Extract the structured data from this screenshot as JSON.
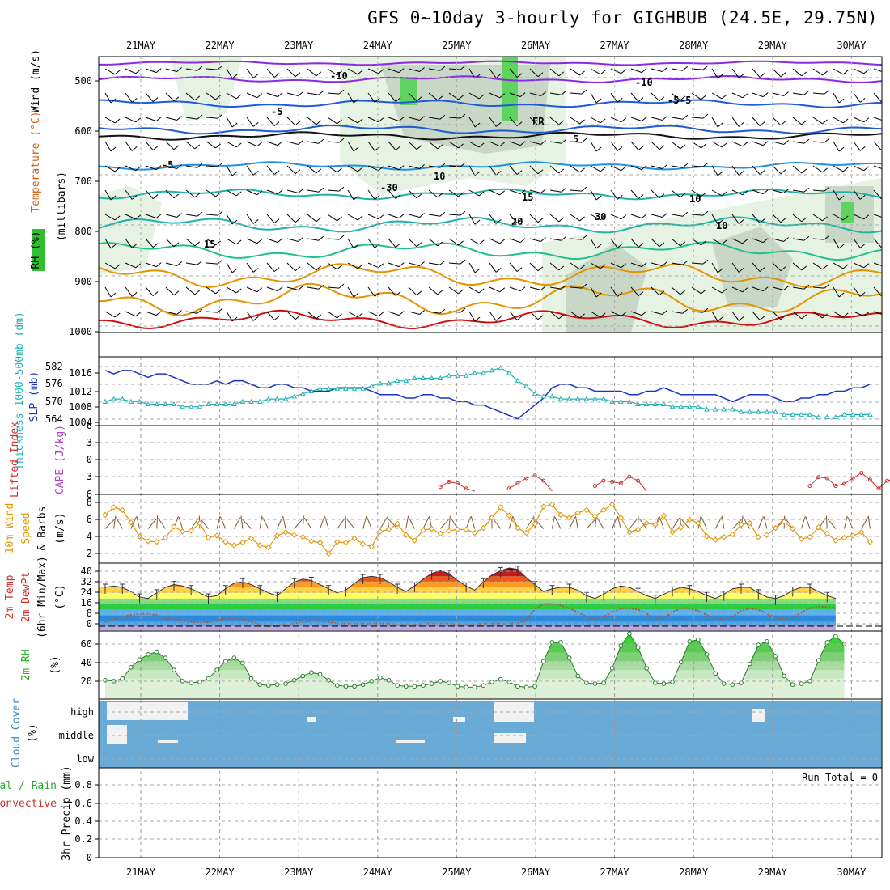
{
  "title": "GFS 0~10day 3-hourly for GIGHBUB (24.5E, 29.75N)",
  "dates": [
    "21MAY",
    "22MAY",
    "23MAY",
    "24MAY",
    "25MAY",
    "26MAY",
    "27MAY",
    "28MAY",
    "29MAY",
    "30MAY"
  ],
  "colors": {
    "rh": "#2fbf2f",
    "temp_cold": "#8a2be2",
    "temp_cool": "#1e5bd6",
    "temp_mild": "#20b2aa",
    "temp_warm": "#e59400",
    "temp_hot": "#d01010",
    "slp": "#1a33c8",
    "thickness": "#20b2b2",
    "lifted": "#d03030",
    "wind10": "#e59400",
    "cloud": "#6aaad6",
    "rh2m": "#22aa22"
  },
  "panels": {
    "upper": {
      "ylabels": [
        "RH (%)",
        "Temperature (°C)",
        "Wind (m/s)"
      ],
      "ylabel2": "(millibars)",
      "ticks": [
        "500",
        "600",
        "700",
        "800",
        "900",
        "1000"
      ],
      "contour_labels": [
        "-10",
        "-10",
        "-5",
        "-5",
        "-5",
        "FR",
        "-5",
        "5",
        "10",
        "10",
        "15",
        "20",
        "15",
        "10",
        "-30",
        "30"
      ]
    },
    "slp": {
      "ylabel_left": "Thickness 1000-500mb (dm)",
      "ylabel_right": "SLP (mb)",
      "ticks_thk": [
        "582",
        "576",
        "570",
        "564"
      ],
      "ticks_slp": [
        "1016",
        "1012",
        "1008",
        "1004"
      ]
    },
    "stability": {
      "ylabel_left": "Lifted Index",
      "ylabel_right": "CAPE (J/kg)",
      "ticks": [
        "-6",
        "-3",
        "0",
        "3",
        "6"
      ]
    },
    "wind10": {
      "ylabel_left": "10m Wind",
      "ylabel_mid": "Speed",
      "ylabel_right": "& Barbs",
      "unit": "(m/s)",
      "ticks": [
        "8",
        "6",
        "4",
        "2"
      ]
    },
    "temp2m": {
      "ylabel": [
        "2m Temp",
        "2m DewPt",
        "(6hr Min/Max)"
      ],
      "unit": "(°C)",
      "ticks": [
        "40",
        "32",
        "24",
        "16",
        "8",
        "0"
      ]
    },
    "rh2m": {
      "ylabel": "2m RH",
      "unit": "(%)",
      "ticks": [
        "60",
        "40",
        "20"
      ]
    },
    "cloud": {
      "ylabel": "Cloud Cover",
      "unit": "(%)",
      "ticks": [
        "high",
        "middle",
        "low"
      ]
    },
    "precip": {
      "ylabel_left": "Total / Rain",
      "ylabel_left2": "Convective",
      "ylabel_right": "3hr Precip (mm)",
      "ticks": [
        "0.8",
        "0.6",
        "0.4",
        "0.2",
        "0"
      ],
      "run_total": "Run Total = 0"
    }
  },
  "chart_data": [
    {
      "type": "line",
      "title": "GFS 0~10day 3-hourly for GIGHBUB (24.5E, 29.75N)",
      "xlabel": "",
      "ylabel": "SLP (mb)",
      "ylim": [
        1003,
        1021
      ],
      "series": [
        {
          "name": "SLP (mb)",
          "values": [
            1018,
            1017,
            1018,
            1018,
            1017,
            1016,
            1017,
            1017,
            1016,
            1015,
            1014,
            1014,
            1014,
            1015,
            1014,
            1015,
            1015,
            1014,
            1013,
            1013,
            1014,
            1014,
            1013,
            1013,
            1012,
            1012,
            1012,
            1013,
            1013,
            1013,
            1013,
            1012,
            1011,
            1011,
            1011,
            1010,
            1010,
            1011,
            1011,
            1010,
            1010,
            1009,
            1009,
            1008,
            1008,
            1007,
            1006,
            1005,
            1004,
            1006,
            1008,
            1010,
            1013,
            1014,
            1014,
            1013,
            1013,
            1012,
            1012,
            1012,
            1012,
            1011,
            1011,
            1012,
            1012,
            1013,
            1012,
            1011,
            1011,
            1011,
            1011,
            1011,
            1010,
            1009,
            1010,
            1011,
            1011,
            1011,
            1010,
            1009,
            1009,
            1010,
            1010,
            1011,
            1011,
            1012,
            1012,
            1013,
            1013,
            1014
          ]
        },
        {
          "name": "Thickness 1000-500mb (dm)",
          "values": [
            570,
            571,
            571,
            570,
            570,
            569,
            569,
            569,
            569,
            568,
            568,
            568,
            569,
            569,
            569,
            569,
            570,
            570,
            570,
            571,
            571,
            571,
            572,
            573,
            574,
            575,
            575,
            575,
            575,
            575,
            575,
            576,
            577,
            577,
            578,
            578,
            579,
            579,
            579,
            579,
            580,
            580,
            580,
            581,
            581,
            582,
            583,
            581,
            578,
            576,
            573,
            572,
            572,
            571,
            571,
            571,
            571,
            571,
            571,
            570,
            570,
            570,
            569,
            569,
            569,
            569,
            568,
            568,
            568,
            568,
            567,
            567,
            567,
            567,
            566,
            566,
            566,
            566,
            566,
            565,
            565,
            565,
            565,
            564,
            564,
            564,
            565,
            565,
            565,
            565
          ]
        }
      ]
    },
    {
      "type": "line",
      "ylabel": "Lifted Index",
      "ylim": [
        -6,
        6
      ],
      "series": [
        {
          "name": "Lifted Index",
          "values": [
            6,
            6,
            6,
            6,
            6,
            6,
            6,
            6,
            6,
            6,
            6,
            6,
            6,
            6,
            6,
            6,
            6,
            6,
            6,
            6,
            6,
            6,
            6,
            6,
            6,
            6,
            6,
            6,
            6,
            6,
            6,
            6,
            6,
            6,
            6,
            6,
            6,
            6,
            6,
            5.2,
            4.2,
            4.5,
            5.5,
            6,
            6,
            6,
            6,
            5.5,
            4.5,
            3.5,
            3,
            4,
            6,
            6,
            6,
            6,
            6,
            5,
            4,
            4.2,
            4.5,
            3.2,
            4,
            6,
            6,
            6,
            6,
            6,
            6,
            6,
            6,
            6,
            6,
            6,
            6,
            6,
            6,
            6,
            6,
            6,
            6,
            6,
            5,
            3.3,
            3.5,
            5,
            4.6,
            3.5,
            2.5,
            3.8,
            5.5,
            4,
            3.6,
            5,
            4.2,
            3.4,
            4.6
          ]
        }
      ]
    },
    {
      "type": "line",
      "ylabel": "10m Wind Speed (m/s)",
      "ylim": [
        0,
        9
      ],
      "series": [
        {
          "name": "10m Wind Speed",
          "values": [
            6.5,
            7.6,
            7.2,
            5.4,
            3.4,
            2.7,
            2.6,
            3.2,
            4.8,
            4.1,
            4.2,
            5.3,
            3.2,
            3.5,
            2.6,
            2.1,
            2.5,
            3.1,
            2.1,
            1.8,
            3.5,
            4.0,
            3.6,
            3.3,
            2.7,
            2.5,
            0.9,
            2.6,
            2.5,
            3.1,
            2.3,
            1.9,
            4.1,
            4.4,
            5.2,
            3.6,
            2.8,
            4.3,
            4.5,
            3.8,
            4.2,
            4.4,
            4.4,
            3.9,
            4.6,
            6.1,
            7.6,
            6.4,
            4.6,
            3.9,
            5.2,
            7.7,
            8.0,
            6.5,
            6.1,
            6.8,
            7.2,
            6.3,
            7.2,
            8.0,
            6.1,
            4.0,
            4.4,
            5.3,
            5.1,
            6.4,
            4.0,
            4.7,
            5.8,
            5.3,
            3.4,
            2.9,
            3.3,
            3.7,
            5.1,
            5.3,
            3.3,
            3.6,
            4.6,
            5.5,
            4.5,
            3.0,
            3.3,
            4.7,
            3.8,
            2.8,
            3.2,
            3.5,
            4.0,
            2.6
          ]
        }
      ]
    },
    {
      "type": "area",
      "ylabel": "2m Temp (°C)",
      "ylim": [
        -3,
        44
      ],
      "series": [
        {
          "name": "2m Temp",
          "values": [
            28,
            29,
            28,
            25,
            21,
            20,
            24,
            28,
            30,
            29,
            27,
            24,
            21,
            22,
            27,
            31,
            32,
            30,
            27,
            24,
            22,
            27,
            32,
            34,
            33,
            30,
            27,
            24,
            26,
            31,
            35,
            36,
            35,
            32,
            28,
            25,
            29,
            34,
            38,
            40,
            38,
            33,
            29,
            26,
            32,
            37,
            40,
            42,
            41,
            35,
            30,
            25,
            27,
            28,
            28,
            26,
            22,
            20,
            23,
            27,
            29,
            28,
            25,
            22,
            20,
            23,
            26,
            28,
            27,
            25,
            22,
            20,
            23,
            27,
            28,
            28,
            24,
            21,
            20,
            22,
            26,
            28,
            28,
            25,
            22,
            20
          ]
        },
        {
          "name": "2m DewPt",
          "values": [
            3,
            5,
            7,
            8,
            9,
            9,
            8,
            6,
            5,
            4,
            3,
            3,
            3,
            4,
            6,
            6,
            5,
            3,
            1,
            0,
            0,
            1,
            2,
            3,
            4,
            4,
            3,
            2,
            2,
            2,
            2,
            2,
            2,
            2,
            1,
            1,
            1,
            2,
            2,
            2,
            2,
            1,
            1,
            1,
            2,
            2,
            2,
            2,
            2,
            5,
            12,
            16,
            16,
            15,
            13,
            10,
            7,
            5,
            7,
            10,
            13,
            13,
            12,
            9,
            6,
            6,
            10,
            13,
            13,
            11,
            8,
            6,
            5,
            7,
            11,
            13,
            12,
            9,
            6,
            5,
            6,
            10,
            13,
            14,
            14,
            13
          ]
        }
      ]
    },
    {
      "type": "area",
      "ylabel": "2m RH (%)",
      "ylim": [
        0,
        75
      ],
      "series": [
        {
          "name": "2m RH",
          "values": [
            18,
            17,
            20,
            33,
            42,
            48,
            51,
            44,
            30,
            17,
            15,
            16,
            20,
            30,
            40,
            44,
            38,
            20,
            13,
            12,
            13,
            14,
            18,
            23,
            27,
            25,
            18,
            12,
            11,
            11,
            13,
            17,
            21,
            18,
            12,
            11,
            11,
            12,
            14,
            17,
            15,
            11,
            10,
            10,
            12,
            16,
            19,
            16,
            11,
            10,
            11,
            40,
            62,
            62,
            44,
            23,
            15,
            14,
            15,
            32,
            58,
            72,
            56,
            32,
            15,
            14,
            16,
            39,
            63,
            65,
            48,
            26,
            14,
            13,
            15,
            37,
            59,
            63,
            46,
            23,
            13,
            14,
            17,
            41,
            62,
            69,
            60
          ]
        }
      ]
    },
    {
      "type": "bar",
      "ylabel": "3hr Precip (mm)",
      "ylim": [
        0,
        1
      ],
      "series": [
        {
          "name": "3hr Precip",
          "values": []
        }
      ]
    }
  ]
}
